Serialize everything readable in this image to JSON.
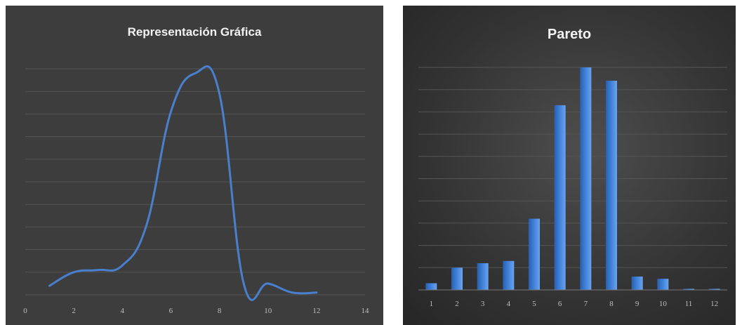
{
  "chart_data": [
    {
      "type": "line",
      "title": "Representación Gráfica",
      "xlabel": "",
      "ylabel": "",
      "xlim": [
        0,
        14
      ],
      "ylim": [
        0,
        10
      ],
      "x_ticks": [
        "0",
        "2",
        "4",
        "6",
        "8",
        "10",
        "12",
        "14"
      ],
      "grid": "horizontal",
      "smooth": true,
      "colors": {
        "line": "#4a7fce",
        "background": "#3d3d3d"
      },
      "series": [
        {
          "x": [
            1,
            2,
            3,
            4,
            5,
            6,
            7,
            8,
            9,
            10,
            11,
            12
          ],
          "values": [
            0.4,
            1.0,
            1.1,
            1.3,
            3.1,
            8.1,
            9.8,
            8.9,
            0.5,
            0.5,
            0.1,
            0.1
          ]
        }
      ]
    },
    {
      "type": "bar",
      "title": "Pareto",
      "xlabel": "",
      "ylabel": "",
      "ylim": [
        0,
        10
      ],
      "grid": "horizontal",
      "categories": [
        "1",
        "2",
        "3",
        "4",
        "5",
        "6",
        "7",
        "8",
        "9",
        "10",
        "11",
        "12"
      ],
      "colors": {
        "bar": "#3f7fd8",
        "background": "#333333"
      },
      "series": [
        {
          "values": [
            0.3,
            1.0,
            1.2,
            1.3,
            3.2,
            8.3,
            10.0,
            9.4,
            0.6,
            0.5,
            0.05,
            0.05
          ]
        }
      ]
    }
  ]
}
